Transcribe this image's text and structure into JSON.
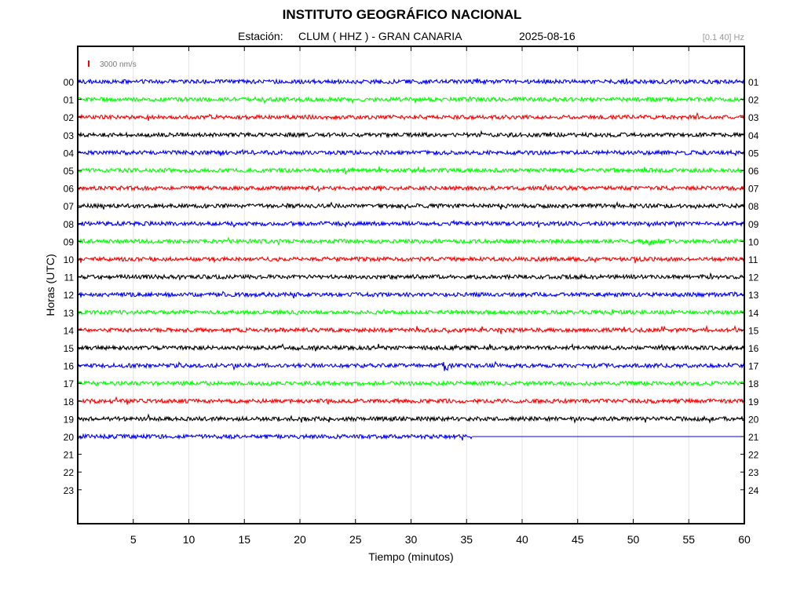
{
  "header": {
    "title": "INSTITUTO GEOGRÁFICO NACIONAL",
    "station_label": "Estación:",
    "station_value": "CLUM ( HHZ ) - GRAN CANARIA",
    "date": "2025-08-16",
    "filter": "[0.1 40] Hz"
  },
  "chart_data": {
    "type": "line",
    "title": "INSTITUTO GEOGRÁFICO NACIONAL",
    "xlabel": "Tiempo (minutos)",
    "ylabel": "Horas (UTC)",
    "xlim": [
      0,
      60
    ],
    "x_ticks": [
      "5",
      "10",
      "15",
      "20",
      "25",
      "30",
      "35",
      "40",
      "45",
      "50",
      "55",
      "60"
    ],
    "left_hour_labels": [
      "00",
      "01",
      "02",
      "03",
      "04",
      "05",
      "06",
      "07",
      "08",
      "09",
      "10",
      "11",
      "12",
      "13",
      "14",
      "15",
      "16",
      "17",
      "18",
      "19",
      "20",
      "21",
      "22",
      "23"
    ],
    "right_hour_labels": [
      "01",
      "02",
      "03",
      "04",
      "05",
      "06",
      "07",
      "08",
      "09",
      "10",
      "11",
      "12",
      "13",
      "14",
      "15",
      "16",
      "17",
      "18",
      "19",
      "20",
      "21",
      "22",
      "23",
      "24"
    ],
    "grid": true,
    "scale_bar_label": "3000 nm/s",
    "scale_bar_color": "#ff0000",
    "trace_colors": [
      "#0000ff",
      "#00ff00",
      "#ff0000",
      "#000000"
    ],
    "traces_recorded_hours": 21,
    "last_trace_data_end_minute": 35.5,
    "events": [
      {
        "hour": "09",
        "minute": 51.2
      },
      {
        "hour": "16",
        "minute": 33.0
      }
    ]
  }
}
